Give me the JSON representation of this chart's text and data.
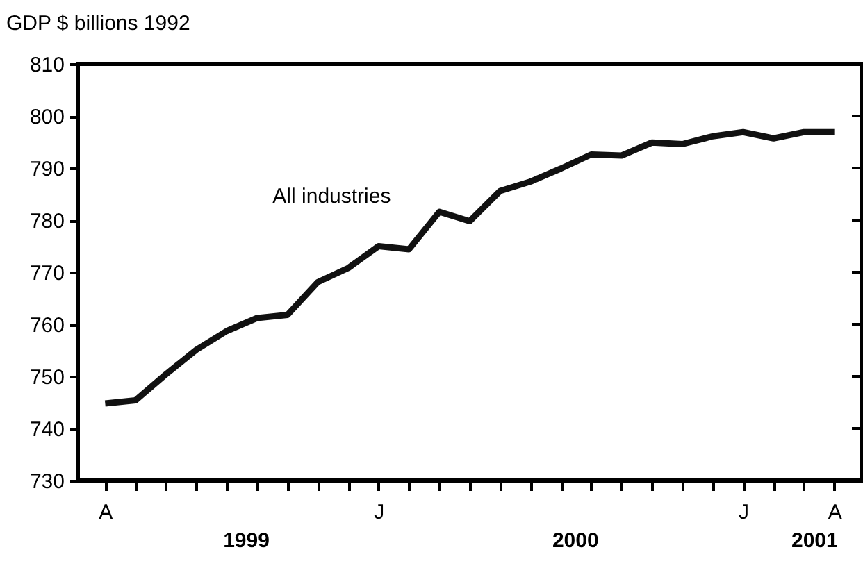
{
  "chart_data": {
    "type": "line",
    "ylabel": "GDP $ billions 1992",
    "categories": [
      "A",
      null,
      null,
      null,
      null,
      null,
      null,
      null,
      null,
      "J",
      null,
      null,
      null,
      null,
      null,
      null,
      null,
      null,
      null,
      null,
      null,
      "J",
      null,
      null,
      "A"
    ],
    "series": [
      {
        "name": "All industries",
        "color": "#111111",
        "values": [
          744.8,
          745.4,
          750.4,
          755.1,
          758.7,
          761.2,
          761.8,
          768.1,
          770.8,
          775.0,
          774.4,
          781.6,
          779.8,
          785.6,
          787.4,
          789.9,
          792.6,
          792.4,
          794.9,
          794.6,
          796.1,
          796.9,
          795.7,
          796.9,
          796.9
        ]
      }
    ],
    "ylim": [
      730,
      810
    ],
    "yticks": [
      730,
      740,
      750,
      760,
      770,
      780,
      790,
      800,
      810
    ],
    "annotations": [
      "1999",
      "2000",
      "2001"
    ],
    "grid": false,
    "marker": "none",
    "line_style": "solid"
  }
}
